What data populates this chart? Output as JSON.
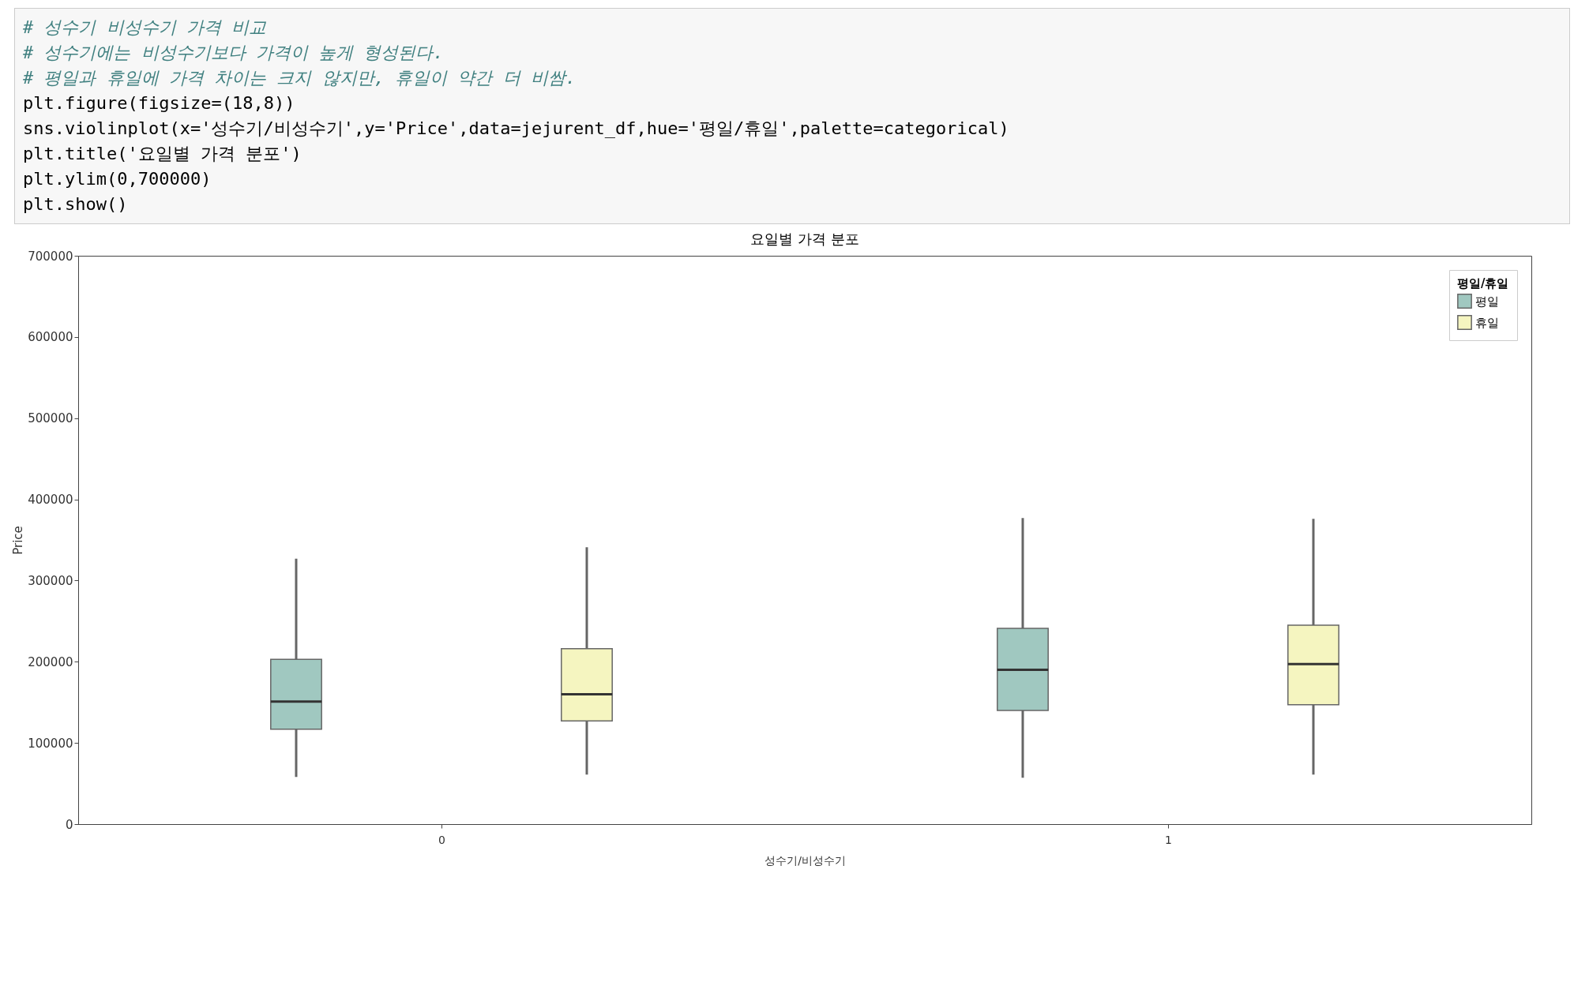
{
  "chart_data": {
    "type": "box",
    "title": "요일별 가격 분포",
    "xlabel": "성수기/비성수기",
    "ylabel": "Price",
    "legend_title": "평일/휴일",
    "legend": "top right",
    "grid": false,
    "categories": [
      "0",
      "1"
    ],
    "ylim": [
      0,
      700000
    ],
    "yticks": [
      0,
      100000,
      200000,
      300000,
      400000,
      500000,
      600000,
      700000
    ],
    "series": [
      {
        "name": "평일",
        "color": "#a0c8c0",
        "boxes": [
          {
            "low": 58000,
            "q1": 117000,
            "median": 151000,
            "q3": 203000,
            "high": 327000
          },
          {
            "low": 57000,
            "q1": 140000,
            "median": 190000,
            "q3": 241000,
            "high": 377000
          }
        ]
      },
      {
        "name": "휴일",
        "color": "#f5f5c0",
        "boxes": [
          {
            "low": 61000,
            "q1": 127000,
            "median": 160000,
            "q3": 216000,
            "high": 341000
          },
          {
            "low": 61000,
            "q1": 147000,
            "median": 197000,
            "q3": 245000,
            "high": 376000
          }
        ]
      }
    ],
    "annotations": [
      "# 성수기 비성수기 가격 비교",
      "# 성수기에는 비성수기보다 가격이 높게 형성된다.",
      "# 평일과 휴일에 가격 차이는 크지 않지만, 휴일이 약간 더 비쌈.",
      "plt.figure(figsize=(18,8))",
      "sns.violinplot(x='성수기/비성수기',y='Price',data=jejurent_df,hue='평일/휴일',palette=categorical)",
      "plt.title('요일별 가격 분포')",
      "plt.ylim(0,700000)",
      "plt.show()"
    ]
  }
}
